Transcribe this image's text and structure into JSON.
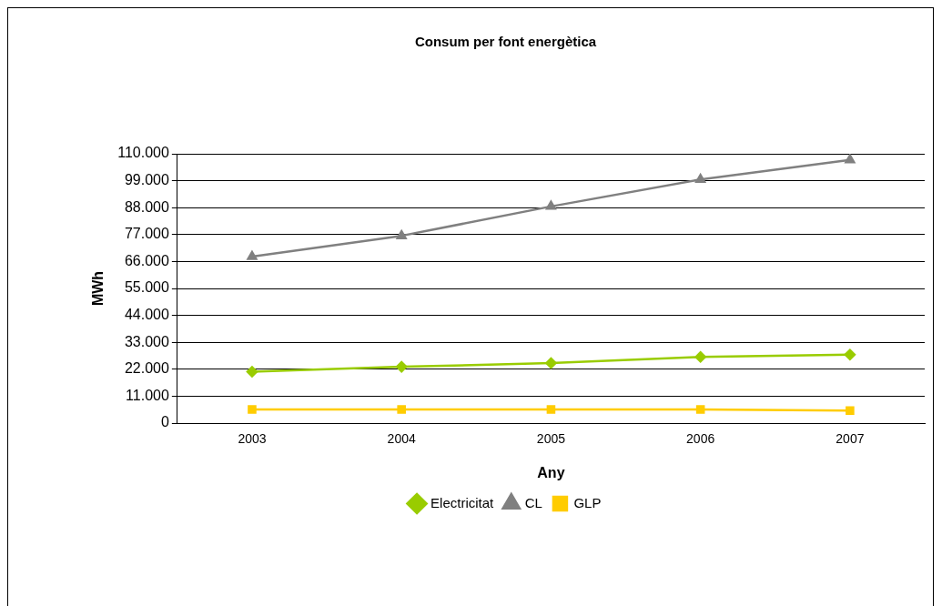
{
  "chart_data": {
    "type": "line",
    "title": "Consum per font energètica",
    "xlabel": "Any",
    "ylabel": "MWh",
    "categories": [
      "2003",
      "2004",
      "2005",
      "2006",
      "2007"
    ],
    "series": [
      {
        "name": "Electricitat",
        "color": "#99cc00",
        "marker": "diamond",
        "values": [
          21000,
          23000,
          24500,
          27000,
          28000
        ]
      },
      {
        "name": "CL",
        "color": "#808080",
        "marker": "triangle",
        "values": [
          68000,
          76500,
          88500,
          99500,
          107500
        ]
      },
      {
        "name": "GLP",
        "color": "#ffcc00",
        "marker": "square",
        "values": [
          5600,
          5600,
          5600,
          5600,
          5100
        ]
      }
    ],
    "ylim": [
      0,
      110000
    ],
    "yticks": [
      0,
      {
        "value": 11000,
        "label": "11.000"
      },
      {
        "value": 22000,
        "label": "22.000"
      },
      {
        "value": 33000,
        "label": "33.000"
      },
      {
        "value": 44000,
        "label": "44.000"
      },
      {
        "value": 55000,
        "label": "55.000"
      },
      {
        "value": 66000,
        "label": "66.000"
      },
      {
        "value": 77000,
        "label": "77.000"
      },
      {
        "value": 88000,
        "label": "88.000"
      },
      {
        "value": 99000,
        "label": "99.000"
      },
      {
        "value": 110000,
        "label": "110.000"
      }
    ],
    "grid": "y",
    "legend": "bottom",
    "line_style": "solid"
  }
}
